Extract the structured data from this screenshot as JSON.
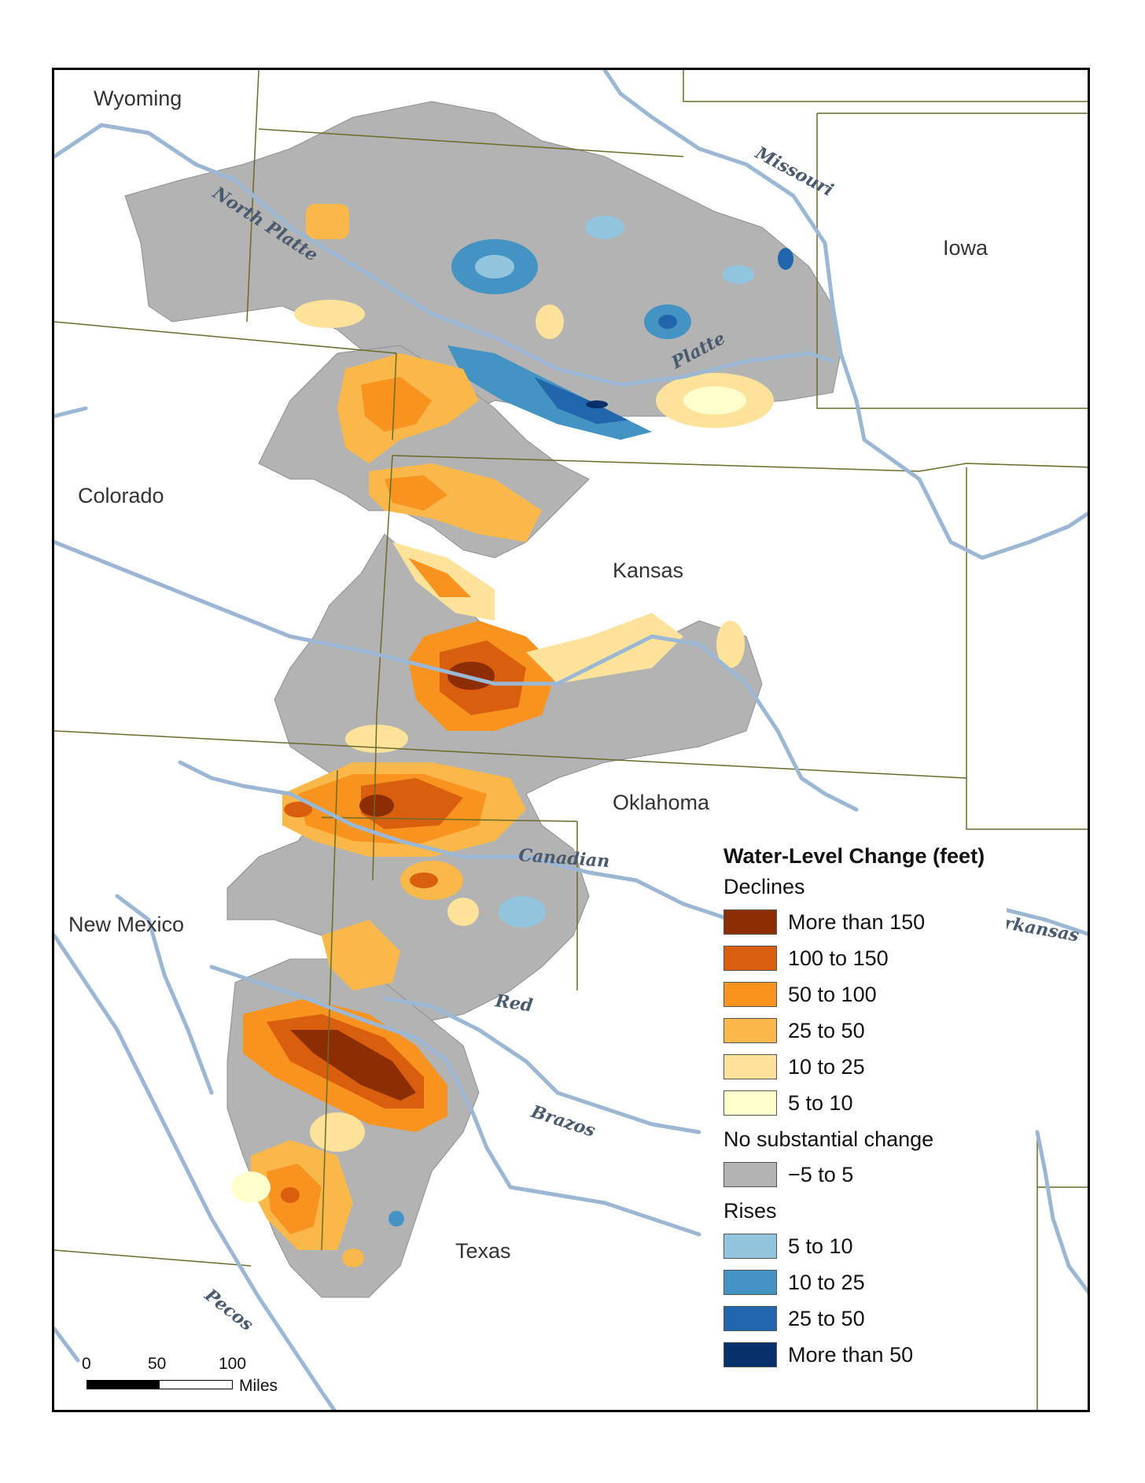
{
  "states": {
    "wyoming": "Wyoming",
    "iowa": "Iowa",
    "colorado": "Colorado",
    "kansas": "Kansas",
    "oklahoma": "Oklahoma",
    "new_mexico": "New Mexico",
    "texas": "Texas"
  },
  "rivers": {
    "missouri": "Missouri",
    "north_platte": "North Platte",
    "platte": "Platte",
    "canadian": "Canadian",
    "arkansas": "Arkansas",
    "red": "Red",
    "brazos": "Brazos",
    "pecos": "Pecos"
  },
  "colors": {
    "river": "#9bb7d4",
    "border": "#6b6b2a",
    "aquifer_no_change": "#b3b3b3"
  },
  "legend": {
    "title": "Water-Level Change (feet)",
    "declines_heading": "Declines",
    "declines": [
      {
        "label": "More than 150",
        "color": "#8c2d04"
      },
      {
        "label": "100 to 150",
        "color": "#d95f0e"
      },
      {
        "label": "50 to 100",
        "color": "#f7931e"
      },
      {
        "label": "25 to 50",
        "color": "#fbb84a"
      },
      {
        "label": "10 to 25",
        "color": "#fde29a"
      },
      {
        "label": "5 to 10",
        "color": "#ffffcc"
      }
    ],
    "no_change_heading": "No substantial change",
    "no_change": {
      "label": "−5 to 5",
      "color": "#b3b3b3"
    },
    "rises_heading": "Rises",
    "rises": [
      {
        "label": "5 to 10",
        "color": "#92c5de"
      },
      {
        "label": "10 to 25",
        "color": "#4393c3"
      },
      {
        "label": "25 to 50",
        "color": "#2166ac"
      },
      {
        "label": "More than 50",
        "color": "#08306b"
      }
    ]
  },
  "scale_bar": {
    "ticks": [
      "0",
      "50",
      "100"
    ],
    "unit": "Miles"
  }
}
